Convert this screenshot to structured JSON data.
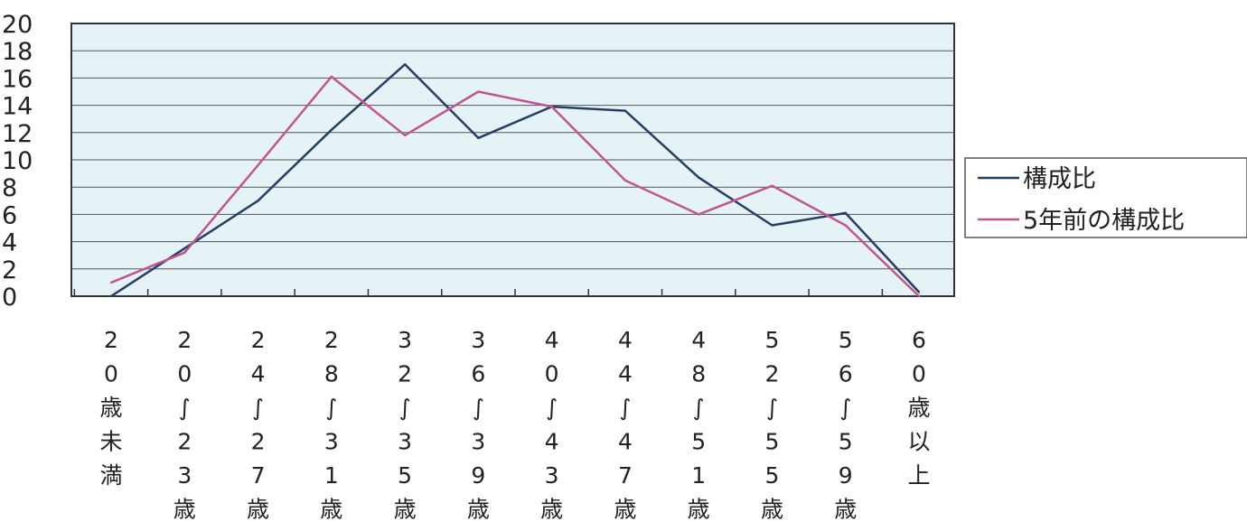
{
  "chart_data": {
    "type": "line",
    "categories": [
      "20歳未満",
      "20〜23歳",
      "24〜27歳",
      "28〜31歳",
      "32〜35歳",
      "36〜39歳",
      "40〜43歳",
      "44〜47歳",
      "48〜51歳",
      "52〜55歳",
      "56〜59歳",
      "60歳以上"
    ],
    "category_glyphs": [
      [
        "2",
        "0",
        "歳",
        "未",
        "満"
      ],
      [
        "2",
        "0",
        "∫",
        "2",
        "3",
        "歳"
      ],
      [
        "2",
        "4",
        "∫",
        "2",
        "7",
        "歳"
      ],
      [
        "2",
        "8",
        "∫",
        "3",
        "1",
        "歳"
      ],
      [
        "3",
        "2",
        "∫",
        "3",
        "5",
        "歳"
      ],
      [
        "3",
        "6",
        "∫",
        "3",
        "9",
        "歳"
      ],
      [
        "4",
        "0",
        "∫",
        "4",
        "3",
        "歳"
      ],
      [
        "4",
        "4",
        "∫",
        "4",
        "7",
        "歳"
      ],
      [
        "4",
        "8",
        "∫",
        "5",
        "1",
        "歳"
      ],
      [
        "5",
        "2",
        "∫",
        "5",
        "5",
        "歳"
      ],
      [
        "5",
        "6",
        "∫",
        "5",
        "9",
        "歳"
      ],
      [
        "6",
        "0",
        "歳",
        "以",
        "上"
      ]
    ],
    "series": [
      {
        "name": "構成比",
        "color": "#243f63",
        "values": [
          0,
          3.5,
          7,
          12.2,
          17,
          11.6,
          13.9,
          13.6,
          8.7,
          5.2,
          6.1,
          0.3
        ]
      },
      {
        "name": "5年前の構成比",
        "color": "#c0558f",
        "values": [
          1,
          3.2,
          9.6,
          16.1,
          11.8,
          15,
          13.9,
          8.5,
          6,
          8.1,
          5.2,
          0
        ]
      }
    ],
    "yticks": [
      "0",
      "2",
      "4",
      "6",
      "8",
      "10",
      "12",
      "14",
      "16",
      "18",
      "20"
    ],
    "ylim": [
      0,
      20
    ],
    "grid": true,
    "legend_position": "right",
    "plot_background": "#e6f3f6"
  }
}
